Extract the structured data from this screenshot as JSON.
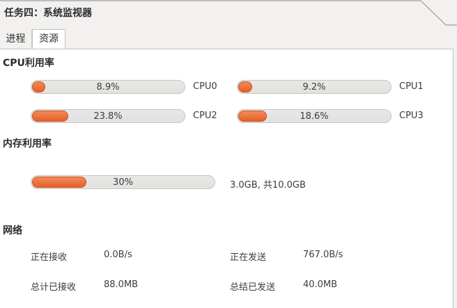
{
  "window": {
    "title": "任务四：系统监视器"
  },
  "tabs": [
    {
      "label": "进程"
    },
    {
      "label": "资源"
    }
  ],
  "cpu": {
    "section_title": "CPU利用率",
    "cores": [
      {
        "name": "CPU0",
        "percent": 8.9,
        "label": "8.9%"
      },
      {
        "name": "CPU1",
        "percent": 9.2,
        "label": "9.2%"
      },
      {
        "name": "CPU2",
        "percent": 23.8,
        "label": "23.8%"
      },
      {
        "name": "CPU3",
        "percent": 18.6,
        "label": "18.6%"
      }
    ]
  },
  "memory": {
    "section_title": "内存利用率",
    "percent": 30,
    "label": "30%",
    "detail": "3.0GB, 共10.0GB"
  },
  "network": {
    "section_title": "网络",
    "receiving_label": "正在接收",
    "receiving_value": "0.0B/s",
    "total_received_label": "总计已接收",
    "total_received_value": "88.0MB",
    "sending_label": "正在发送",
    "sending_value": "767.0B/s",
    "total_sent_label": "总结已发送",
    "total_sent_value": "40.0MB"
  },
  "colors": {
    "bar_fill": "#e5602a",
    "bar_track": "#e5e4e2",
    "content_bg": "#ffffff",
    "window_bg": "#f2f1f0"
  }
}
